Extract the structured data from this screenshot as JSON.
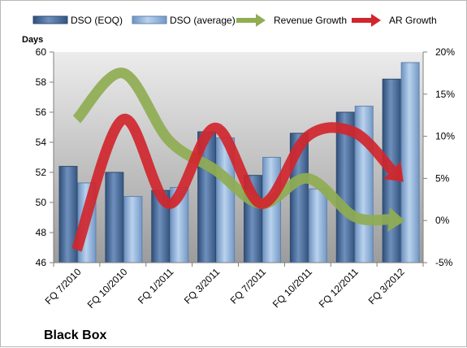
{
  "chart_data": {
    "type": "bar",
    "title": "",
    "company_label": "Black Box",
    "ylabel_left": "Days",
    "ylim_left": [
      46,
      60
    ],
    "yticks_left": [
      "46",
      "48",
      "50",
      "52",
      "54",
      "56",
      "58",
      "60"
    ],
    "ylim_right": [
      -0.05,
      0.2
    ],
    "yticks_right": [
      "-5%",
      "0%",
      "5%",
      "10%",
      "15%",
      "20%"
    ],
    "grid": false,
    "legend_position": "top",
    "categories": [
      "FQ 7/2010",
      "FQ 10/2010",
      "FQ 1/2011",
      "FQ 3/2011",
      "FQ 7/2011",
      "FQ 10/2011",
      "FQ 12/2011",
      "FQ 3/2012"
    ],
    "series": [
      {
        "name": "DSO (EOQ)",
        "kind": "bar",
        "axis": "left",
        "color": "#4a6e9c",
        "values": [
          52.4,
          52.0,
          50.8,
          54.7,
          51.8,
          54.6,
          56.0,
          58.2
        ]
      },
      {
        "name": "DSO (average)",
        "kind": "bar",
        "axis": "left",
        "color": "#8fb2dc",
        "values": [
          51.3,
          50.4,
          51.0,
          54.3,
          53.0,
          50.9,
          56.4,
          59.3
        ]
      },
      {
        "name": "Revenue Growth",
        "kind": "line",
        "axis": "right",
        "color": "#8fad53",
        "values": [
          0.12,
          0.175,
          0.095,
          0.06,
          0.02,
          0.05,
          0.005,
          0.0
        ]
      },
      {
        "name": "AR Growth",
        "kind": "line",
        "axis": "right",
        "color": "#d0262c",
        "values": [
          -0.035,
          0.12,
          0.02,
          0.11,
          0.02,
          0.1,
          0.105,
          0.05
        ]
      }
    ]
  }
}
